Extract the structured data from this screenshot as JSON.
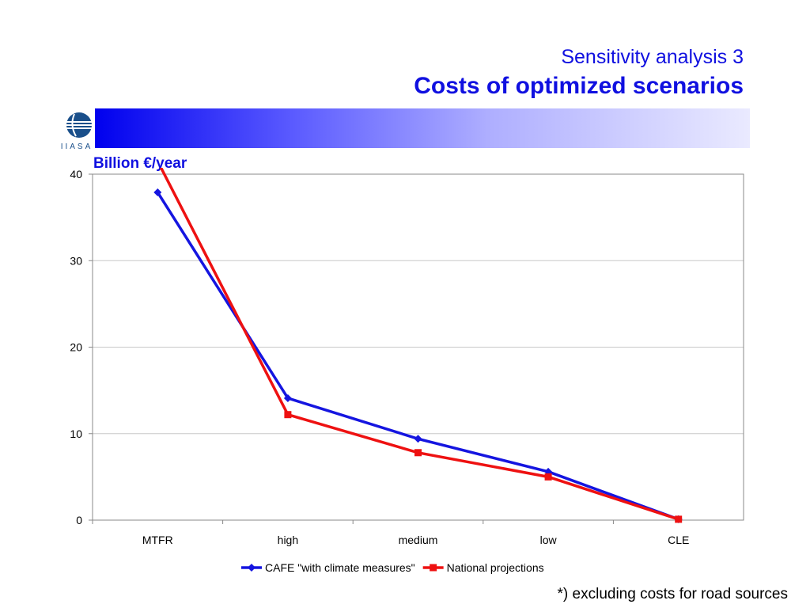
{
  "slide": {
    "title_line1": "Sensitivity analysis 3",
    "title_line2": "Costs of optimized scenarios",
    "logo_text": "IIASA",
    "unit_label": "Billion €/year",
    "footnote": "*) excluding costs for road sources"
  },
  "colors": {
    "title": "#1010e0",
    "series_cafe": "#1515e0",
    "series_national": "#ee1111"
  },
  "chart_data": {
    "type": "line",
    "categories": [
      "MTFR",
      "high",
      "medium",
      "low",
      "CLE"
    ],
    "ylim": [
      0,
      40
    ],
    "yticks": [
      0,
      10,
      20,
      30,
      40
    ],
    "grid": true,
    "legend_position": "bottom",
    "ylabel": "Billion €/year",
    "xlabel": "",
    "series": [
      {
        "name": "CAFE \"with climate measures\"",
        "marker": "diamond",
        "color": "#1515e0",
        "values": [
          37.9,
          14.1,
          9.4,
          5.6,
          0.1
        ]
      },
      {
        "name": "National projections",
        "marker": "square",
        "color": "#ee1111",
        "values": [
          41.5,
          12.2,
          7.8,
          5.0,
          0.1
        ]
      }
    ]
  }
}
